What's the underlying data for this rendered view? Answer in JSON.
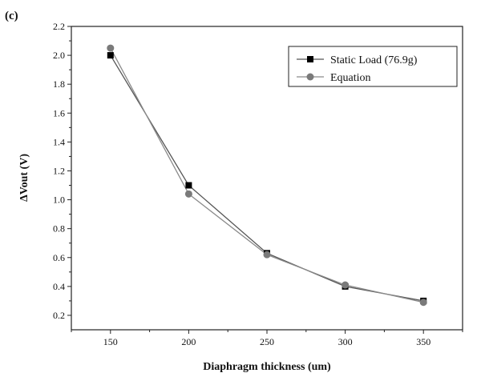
{
  "panel_label": "(c)",
  "chart_data": {
    "type": "line",
    "title": "",
    "xlabel": "Diaphragm thickness (um)",
    "ylabel": "ΔVout (V)",
    "xlim": [
      125,
      375
    ],
    "ylim": [
      0.1,
      2.2
    ],
    "x_ticks": [
      150,
      200,
      250,
      300,
      350
    ],
    "y_ticks": [
      0.2,
      0.4,
      0.6,
      0.8,
      1.0,
      1.2,
      1.4,
      1.6,
      1.8,
      2.0,
      2.2
    ],
    "x_tick_labels": [
      "150",
      "200",
      "250",
      "300",
      "350"
    ],
    "y_tick_labels": [
      "0.2",
      "0.4",
      "0.6",
      "0.8",
      "1.0",
      "1.2",
      "1.4",
      "1.6",
      "1.8",
      "2.0",
      "2.2"
    ],
    "grid": false,
    "legend_position": "top-right",
    "x": [
      150,
      200,
      250,
      300,
      350
    ],
    "series": [
      {
        "name": "Static Load (76.9g)",
        "values": [
          2.0,
          1.1,
          0.63,
          0.4,
          0.3
        ],
        "marker": "square",
        "color": "#000000",
        "line_color": "#555555"
      },
      {
        "name": "Equation",
        "values": [
          2.05,
          1.04,
          0.62,
          0.41,
          0.29
        ],
        "marker": "circle",
        "color": "#7a7a7a",
        "line_color": "#8a8a8a"
      }
    ]
  }
}
